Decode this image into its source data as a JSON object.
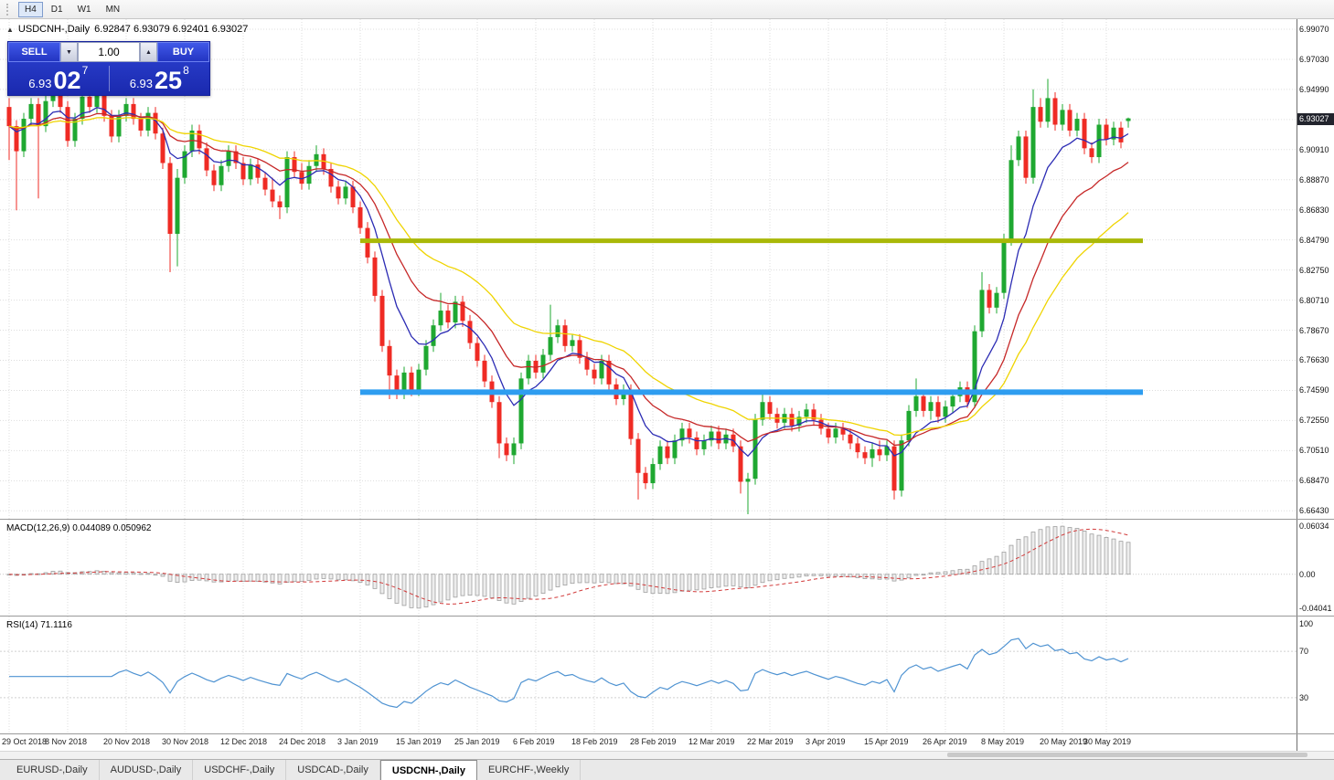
{
  "toolbar": {
    "timeframes": [
      {
        "label": "H4",
        "active": true
      },
      {
        "label": "D1",
        "active": false
      },
      {
        "label": "W1",
        "active": false
      },
      {
        "label": "MN",
        "active": false
      }
    ]
  },
  "chart_caption": {
    "symbol_period": "USDCNH-,Daily",
    "ohlc": "6.92847 6.93079 6.92401 6.93027"
  },
  "trade_panel": {
    "sell_label": "SELL",
    "buy_label": "BUY",
    "volume": "1.00",
    "sell_price": {
      "prefix": "6.93",
      "big": "02",
      "sup": "7"
    },
    "buy_price": {
      "prefix": "6.93",
      "big": "25",
      "sup": "8"
    }
  },
  "price_axis": {
    "current": "6.93027"
  },
  "macd_panel": {
    "label": "MACD(12,26,9) 0.044089 0.050962",
    "axis_max": "0.06034",
    "axis_zero": "0.00",
    "axis_min": "-0.04041"
  },
  "rsi_panel": {
    "label": "RSI(14) 71.1116",
    "axis": [
      "100",
      "70",
      "30"
    ]
  },
  "tabs": [
    {
      "label": "EURUSD-,Daily",
      "active": false
    },
    {
      "label": "AUDUSD-,Daily",
      "active": false
    },
    {
      "label": "USDCHF-,Daily",
      "active": false
    },
    {
      "label": "USDCAD-,Daily",
      "active": false
    },
    {
      "label": "USDCNH-,Daily",
      "active": true
    },
    {
      "label": "EURCHF-,Weekly",
      "active": false
    }
  ],
  "chart_data": {
    "type": "candlestick",
    "title": "USDCNH- Daily",
    "y_range": [
      6.6589,
      6.9975
    ],
    "y_ticks": [
      6.9907,
      6.9703,
      6.9499,
      6.9295,
      6.9091,
      6.8887,
      6.8683,
      6.8479,
      6.8275,
      6.8071,
      6.7867,
      6.7663,
      6.7459,
      6.7255,
      6.7051,
      6.6847,
      6.6643
    ],
    "x_ticks": [
      {
        "index": 0,
        "label": "29 Oct 2018"
      },
      {
        "index": 8,
        "label": "8 Nov 2018"
      },
      {
        "index": 16,
        "label": "20 Nov 2018"
      },
      {
        "index": 24,
        "label": "30 Nov 2018"
      },
      {
        "index": 32,
        "label": "12 Dec 2018"
      },
      {
        "index": 40,
        "label": "24 Dec 2018"
      },
      {
        "index": 48,
        "label": "3 Jan 2019"
      },
      {
        "index": 56,
        "label": "15 Jan 2019"
      },
      {
        "index": 64,
        "label": "25 Jan 2019"
      },
      {
        "index": 72,
        "label": "6 Feb 2019"
      },
      {
        "index": 80,
        "label": "18 Feb 2019"
      },
      {
        "index": 88,
        "label": "28 Feb 2019"
      },
      {
        "index": 96,
        "label": "12 Mar 2019"
      },
      {
        "index": 104,
        "label": "22 Mar 2019"
      },
      {
        "index": 112,
        "label": "3 Apr 2019"
      },
      {
        "index": 120,
        "label": "15 Apr 2019"
      },
      {
        "index": 128,
        "label": "26 Apr 2019"
      },
      {
        "index": 136,
        "label": "8 May 2019"
      },
      {
        "index": 144,
        "label": "20 May 2019"
      },
      {
        "index": 150,
        "label": "30 May 2019"
      }
    ],
    "candles": [
      [
        6.938,
        6.944,
        6.902,
        6.925
      ],
      [
        6.925,
        6.929,
        6.868,
        6.908
      ],
      [
        6.908,
        6.934,
        6.904,
        6.93
      ],
      [
        6.93,
        6.944,
        6.926,
        6.94
      ],
      [
        6.94,
        6.944,
        6.876,
        6.925
      ],
      [
        6.925,
        6.946,
        6.921,
        6.942
      ],
      [
        6.942,
        6.955,
        6.938,
        6.95
      ],
      [
        6.95,
        6.954,
        6.934,
        6.938
      ],
      [
        6.938,
        6.942,
        6.911,
        6.915
      ],
      [
        6.915,
        6.934,
        6.911,
        6.93
      ],
      [
        6.93,
        6.952,
        6.926,
        6.945
      ],
      [
        6.945,
        6.949,
        6.934,
        6.938
      ],
      [
        6.938,
        6.953,
        6.934,
        6.948
      ],
      [
        6.948,
        6.952,
        6.928,
        6.932
      ],
      [
        6.932,
        6.936,
        6.914,
        6.918
      ],
      [
        6.918,
        6.936,
        6.914,
        6.932
      ],
      [
        6.932,
        6.944,
        6.928,
        6.94
      ],
      [
        6.94,
        6.944,
        6.926,
        6.93
      ],
      [
        6.93,
        6.934,
        6.918,
        6.922
      ],
      [
        6.922,
        6.938,
        6.918,
        6.934
      ],
      [
        6.934,
        6.938,
        6.916,
        6.92
      ],
      [
        6.92,
        6.924,
        6.896,
        6.9
      ],
      [
        6.9,
        6.904,
        6.826,
        6.852
      ],
      [
        6.852,
        6.896,
        6.83,
        6.89
      ],
      [
        6.89,
        6.912,
        6.886,
        6.908
      ],
      [
        6.908,
        6.926,
        6.904,
        6.922
      ],
      [
        6.922,
        6.926,
        6.906,
        6.91
      ],
      [
        6.91,
        6.914,
        6.891,
        6.895
      ],
      [
        6.895,
        6.899,
        6.881,
        6.885
      ],
      [
        6.885,
        6.902,
        6.881,
        6.898
      ],
      [
        6.898,
        6.912,
        6.894,
        6.908
      ],
      [
        6.908,
        6.912,
        6.896,
        6.9
      ],
      [
        6.9,
        6.904,
        6.885,
        6.889
      ],
      [
        6.889,
        6.903,
        6.885,
        6.899
      ],
      [
        6.899,
        6.903,
        6.886,
        6.89
      ],
      [
        6.89,
        6.894,
        6.878,
        6.882
      ],
      [
        6.882,
        6.89,
        6.87,
        6.874
      ],
      [
        6.874,
        6.878,
        6.862,
        6.87
      ],
      [
        6.87,
        6.908,
        6.866,
        6.904
      ],
      [
        6.904,
        6.908,
        6.89,
        6.894
      ],
      [
        6.894,
        6.9,
        6.882,
        6.886
      ],
      [
        6.886,
        6.902,
        6.882,
        6.898
      ],
      [
        6.898,
        6.912,
        6.894,
        6.906
      ],
      [
        6.906,
        6.91,
        6.892,
        6.896
      ],
      [
        6.896,
        6.9,
        6.88,
        6.884
      ],
      [
        6.884,
        6.888,
        6.872,
        6.876
      ],
      [
        6.876,
        6.888,
        6.872,
        6.884
      ],
      [
        6.884,
        6.888,
        6.866,
        6.87
      ],
      [
        6.87,
        6.874,
        6.852,
        6.856
      ],
      [
        6.856,
        6.86,
        6.832,
        6.836
      ],
      [
        6.836,
        6.84,
        6.806,
        6.81
      ],
      [
        6.81,
        6.814,
        6.772,
        6.776
      ],
      [
        6.776,
        6.78,
        6.74,
        6.756
      ],
      [
        6.756,
        6.76,
        6.74,
        6.744
      ],
      [
        6.744,
        6.762,
        6.74,
        6.758
      ],
      [
        6.758,
        6.762,
        6.742,
        6.746
      ],
      [
        6.746,
        6.764,
        6.742,
        6.76
      ],
      [
        6.76,
        6.78,
        6.756,
        6.776
      ],
      [
        6.776,
        6.794,
        6.772,
        6.79
      ],
      [
        6.79,
        6.812,
        6.786,
        6.8
      ],
      [
        6.8,
        6.804,
        6.788,
        6.792
      ],
      [
        6.792,
        6.81,
        6.788,
        6.806
      ],
      [
        6.806,
        6.81,
        6.789,
        6.793
      ],
      [
        6.793,
        6.797,
        6.774,
        6.778
      ],
      [
        6.778,
        6.782,
        6.762,
        6.766
      ],
      [
        6.766,
        6.77,
        6.748,
        6.752
      ],
      [
        6.752,
        6.756,
        6.734,
        6.738
      ],
      [
        6.738,
        6.742,
        6.7,
        6.71
      ],
      [
        6.71,
        6.714,
        6.698,
        6.702
      ],
      [
        6.702,
        6.714,
        6.696,
        6.71
      ],
      [
        6.71,
        6.758,
        6.706,
        6.754
      ],
      [
        6.754,
        6.77,
        6.75,
        6.766
      ],
      [
        6.766,
        6.77,
        6.754,
        6.758
      ],
      [
        6.758,
        6.774,
        6.754,
        6.77
      ],
      [
        6.77,
        6.804,
        6.766,
        6.782
      ],
      [
        6.782,
        6.794,
        6.778,
        6.79
      ],
      [
        6.79,
        6.794,
        6.772,
        6.776
      ],
      [
        6.776,
        6.784,
        6.772,
        6.78
      ],
      [
        6.78,
        6.784,
        6.764,
        6.768
      ],
      [
        6.768,
        6.772,
        6.756,
        6.76
      ],
      [
        6.76,
        6.764,
        6.75,
        6.754
      ],
      [
        6.754,
        6.77,
        6.75,
        6.766
      ],
      [
        6.766,
        6.77,
        6.746,
        6.75
      ],
      [
        6.75,
        6.754,
        6.736,
        6.74
      ],
      [
        6.74,
        6.75,
        6.736,
        6.746
      ],
      [
        6.746,
        6.75,
        6.709,
        6.713
      ],
      [
        6.713,
        6.717,
        6.672,
        6.69
      ],
      [
        6.69,
        6.694,
        6.679,
        6.683
      ],
      [
        6.683,
        6.7,
        6.679,
        6.696
      ],
      [
        6.696,
        6.712,
        6.692,
        6.708
      ],
      [
        6.708,
        6.712,
        6.696,
        6.7
      ],
      [
        6.7,
        6.716,
        6.696,
        6.712
      ],
      [
        6.712,
        6.724,
        6.708,
        6.72
      ],
      [
        6.72,
        6.724,
        6.71,
        6.714
      ],
      [
        6.714,
        6.718,
        6.702,
        6.706
      ],
      [
        6.706,
        6.716,
        6.702,
        6.712
      ],
      [
        6.712,
        6.722,
        6.708,
        6.718
      ],
      [
        6.718,
        6.722,
        6.706,
        6.71
      ],
      [
        6.71,
        6.72,
        6.706,
        6.716
      ],
      [
        6.716,
        6.72,
        6.704,
        6.708
      ],
      [
        6.708,
        6.712,
        6.676,
        6.684
      ],
      [
        6.684,
        6.69,
        6.662,
        6.686
      ],
      [
        6.686,
        6.73,
        6.682,
        6.726
      ],
      [
        6.726,
        6.746,
        6.722,
        6.738
      ],
      [
        6.738,
        6.742,
        6.726,
        6.73
      ],
      [
        6.73,
        6.734,
        6.72,
        6.724
      ],
      [
        6.724,
        6.734,
        6.72,
        6.73
      ],
      [
        6.73,
        6.734,
        6.718,
        6.722
      ],
      [
        6.722,
        6.732,
        6.718,
        6.728
      ],
      [
        6.728,
        6.737,
        6.724,
        6.733
      ],
      [
        6.733,
        6.737,
        6.722,
        6.726
      ],
      [
        6.726,
        6.73,
        6.716,
        6.72
      ],
      [
        6.72,
        6.724,
        6.71,
        6.714
      ],
      [
        6.714,
        6.724,
        6.71,
        6.72
      ],
      [
        6.72,
        6.724,
        6.712,
        6.716
      ],
      [
        6.716,
        6.72,
        6.706,
        6.71
      ],
      [
        6.71,
        6.714,
        6.7,
        6.704
      ],
      [
        6.704,
        6.708,
        6.696,
        6.7
      ],
      [
        6.7,
        6.71,
        6.694,
        6.706
      ],
      [
        6.706,
        6.712,
        6.698,
        6.702
      ],
      [
        6.702,
        6.712,
        6.698,
        6.708
      ],
      [
        6.708,
        6.712,
        6.672,
        6.678
      ],
      [
        6.678,
        6.716,
        6.674,
        6.712
      ],
      [
        6.712,
        6.736,
        6.708,
        6.732
      ],
      [
        6.732,
        6.754,
        6.728,
        6.742
      ],
      [
        6.742,
        6.746,
        6.728,
        6.732
      ],
      [
        6.732,
        6.742,
        6.726,
        6.738
      ],
      [
        6.738,
        6.742,
        6.724,
        6.728
      ],
      [
        6.728,
        6.739,
        6.724,
        6.735
      ],
      [
        6.735,
        6.746,
        6.731,
        6.742
      ],
      [
        6.742,
        6.752,
        6.738,
        6.748
      ],
      [
        6.748,
        6.752,
        6.734,
        6.738
      ],
      [
        6.738,
        6.79,
        6.734,
        6.786
      ],
      [
        6.786,
        6.826,
        6.782,
        6.814
      ],
      [
        6.814,
        6.818,
        6.798,
        6.802
      ],
      [
        6.802,
        6.816,
        6.798,
        6.812
      ],
      [
        6.812,
        6.852,
        6.808,
        6.848
      ],
      [
        6.848,
        6.912,
        6.844,
        6.902
      ],
      [
        6.902,
        6.922,
        6.898,
        6.918
      ],
      [
        6.918,
        6.922,
        6.886,
        6.89
      ],
      [
        6.89,
        6.95,
        6.886,
        6.938
      ],
      [
        6.938,
        6.944,
        6.924,
        6.928
      ],
      [
        6.928,
        6.957,
        6.924,
        6.944
      ],
      [
        6.944,
        6.948,
        6.922,
        6.926
      ],
      [
        6.926,
        6.94,
        6.922,
        6.936
      ],
      [
        6.936,
        6.94,
        6.918,
        6.922
      ],
      [
        6.922,
        6.934,
        6.918,
        6.93
      ],
      [
        6.93,
        6.934,
        6.906,
        6.91
      ],
      [
        6.91,
        6.914,
        6.9,
        6.904
      ],
      [
        6.904,
        6.93,
        6.9,
        6.926
      ],
      [
        6.926,
        6.93,
        6.912,
        6.916
      ],
      [
        6.916,
        6.928,
        6.912,
        6.924
      ],
      [
        6.924,
        6.928,
        6.91,
        6.914
      ],
      [
        6.92847,
        6.93079,
        6.92401,
        6.93027
      ]
    ],
    "moving_averages": [
      {
        "name": "ma-fast",
        "period": 8,
        "color": "#2c2cb4"
      },
      {
        "name": "ma-mid",
        "period": 17,
        "color": "#c62828"
      },
      {
        "name": "ma-slow",
        "period": 30,
        "color": "#efd400"
      }
    ],
    "hlines": [
      {
        "price": 6.8473,
        "color": "#a9b808",
        "width": 5,
        "from_index": 48,
        "to_index": 155
      },
      {
        "price": 6.7447,
        "color": "#2e9df0",
        "width": 6,
        "from_index": 48,
        "to_index": 155
      }
    ],
    "colors": {
      "up": "#1fa831",
      "down": "#ef2b24",
      "grid": "#dddddd",
      "macd_bar_fill": "#ededed",
      "macd_bar_stroke": "#9f9f9f",
      "macd_signal": "#d23a3a",
      "rsi_line": "#4f93d2"
    },
    "macd": {
      "fast": 12,
      "slow": 26,
      "signal": 9
    },
    "rsi": {
      "period": 14,
      "levels": [
        70,
        30
      ]
    }
  }
}
